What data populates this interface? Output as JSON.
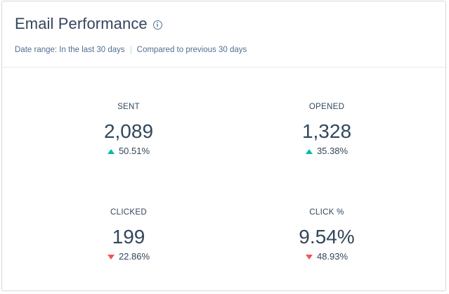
{
  "card": {
    "title": "Email Performance",
    "info_icon": "info-circle-icon"
  },
  "filters": {
    "date_range": "Date range: In the last 30 days",
    "comparison": "Compared to previous 30 days"
  },
  "metrics": [
    {
      "label": "SENT",
      "value": "2,089",
      "change": "50.51%",
      "direction": "up"
    },
    {
      "label": "OPENED",
      "value": "1,328",
      "change": "35.38%",
      "direction": "up"
    },
    {
      "label": "CLICKED",
      "value": "199",
      "change": "22.86%",
      "direction": "down"
    },
    {
      "label": "CLICK %",
      "value": "9.54%",
      "change": "48.93%",
      "direction": "down"
    }
  ],
  "colors": {
    "up": "#00bda5",
    "down": "#f2545b",
    "text": "#33475b"
  }
}
